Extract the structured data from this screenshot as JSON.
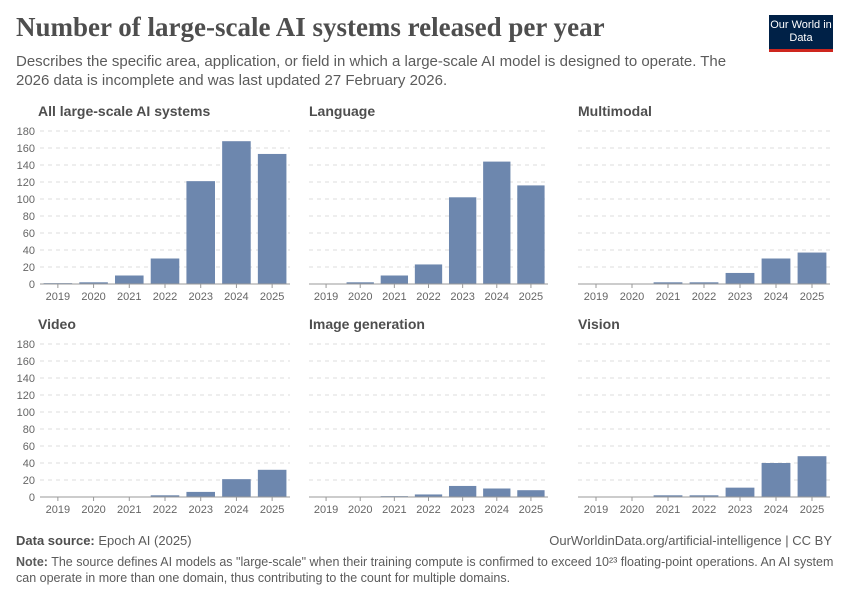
{
  "title": "Number of large-scale AI systems released per year",
  "subtitle": "Describes the specific area, application, or field in which a large-scale AI model is designed to operate. The 2026 data is incomplete and was last updated 27 February 2026.",
  "logo": "Our World in Data",
  "footer": {
    "source_label": "Data source:",
    "source": "Epoch AI (2025)",
    "url": "OurWorldinData.org/artificial-intelligence | CC BY",
    "note_label": "Note:",
    "note": "The source defines AI models as \"large-scale\" when their training compute is confirmed to exceed 10²³ floating-point operations. An AI system can operate in more than one domain, thus contributing to the count for multiple domains."
  },
  "colors": {
    "bar": "#6d87ae"
  },
  "chart_data": [
    {
      "type": "bar",
      "title": "All large-scale AI systems",
      "categories": [
        "2019",
        "2020",
        "2021",
        "2022",
        "2023",
        "2024",
        "2025"
      ],
      "values": [
        1,
        2,
        10,
        30,
        121,
        168,
        153
      ],
      "ylim": [
        0,
        180
      ],
      "yticks": [
        0,
        20,
        40,
        60,
        80,
        100,
        120,
        140,
        160,
        180
      ],
      "grid": true
    },
    {
      "type": "bar",
      "title": "Language",
      "categories": [
        "2019",
        "2020",
        "2021",
        "2022",
        "2023",
        "2024",
        "2025"
      ],
      "values": [
        0,
        2,
        10,
        23,
        102,
        144,
        116
      ],
      "ylim": [
        0,
        180
      ],
      "grid": true
    },
    {
      "type": "bar",
      "title": "Multimodal",
      "categories": [
        "2019",
        "2020",
        "2021",
        "2022",
        "2023",
        "2024",
        "2025"
      ],
      "values": [
        0,
        0,
        2,
        2,
        13,
        30,
        37
      ],
      "ylim": [
        0,
        180
      ],
      "grid": true
    },
    {
      "type": "bar",
      "title": "Video",
      "categories": [
        "2019",
        "2020",
        "2021",
        "2022",
        "2023",
        "2024",
        "2025"
      ],
      "values": [
        0,
        0,
        0,
        2,
        6,
        21,
        32
      ],
      "ylim": [
        0,
        180
      ],
      "yticks": [
        0,
        20,
        40,
        60,
        80,
        100,
        120,
        140,
        160,
        180
      ],
      "grid": true
    },
    {
      "type": "bar",
      "title": "Image generation",
      "categories": [
        "2019",
        "2020",
        "2021",
        "2022",
        "2023",
        "2024",
        "2025"
      ],
      "values": [
        0,
        0,
        1,
        3,
        13,
        10,
        8
      ],
      "ylim": [
        0,
        180
      ],
      "grid": true
    },
    {
      "type": "bar",
      "title": "Vision",
      "categories": [
        "2019",
        "2020",
        "2021",
        "2022",
        "2023",
        "2024",
        "2025"
      ],
      "values": [
        0,
        0,
        2,
        2,
        11,
        40,
        48
      ],
      "ylim": [
        0,
        180
      ],
      "grid": true
    }
  ]
}
